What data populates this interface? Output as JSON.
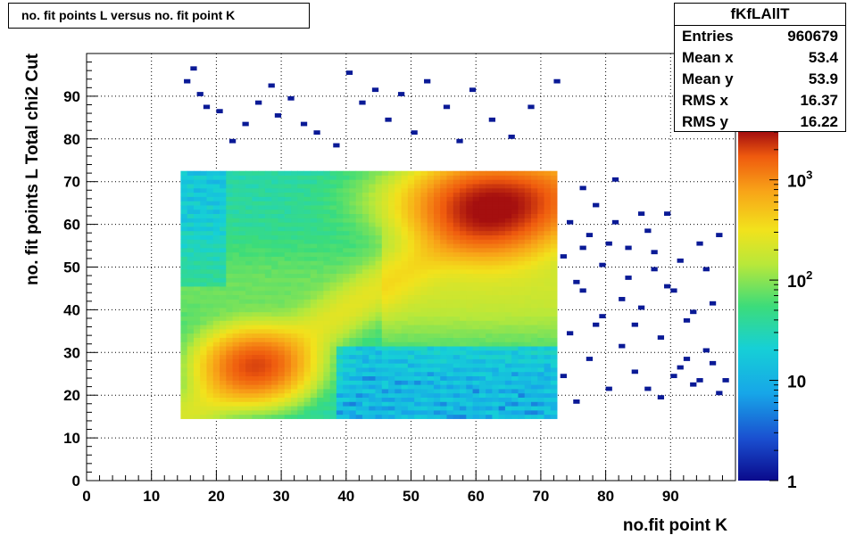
{
  "title": "no. fit points L versus no. fit point K",
  "stats": {
    "name": "fKfLAllT",
    "rows": [
      {
        "label": "Entries",
        "value": "960679"
      },
      {
        "label": "Mean x",
        "value": "53.4"
      },
      {
        "label": "Mean y",
        "value": "53.9"
      },
      {
        "label": "RMS x",
        "value": "16.37"
      },
      {
        "label": "RMS y",
        "value": "16.22"
      }
    ]
  },
  "chart_data": {
    "type": "heatmap",
    "title": "no. fit points L versus no. fit point K",
    "xlabel": "no.fit point K",
    "ylabel": "no. fit points  L   Total chi2 Cut",
    "xlim": [
      0,
      100
    ],
    "ylim": [
      0,
      100
    ],
    "xticks": [
      0,
      10,
      20,
      30,
      40,
      50,
      60,
      70,
      80,
      90
    ],
    "yticks": [
      0,
      10,
      20,
      30,
      40,
      50,
      60,
      70,
      80,
      90
    ],
    "grid": true,
    "z_scale": "log",
    "zlim": [
      1,
      3000
    ],
    "colorbar_labels": [
      {
        "value": 1,
        "base": "1",
        "exp": ""
      },
      {
        "value": 10,
        "base": "10",
        "exp": ""
      },
      {
        "value": 100,
        "base": "10",
        "exp": "2"
      },
      {
        "value": 1000,
        "base": "10",
        "exp": "3"
      }
    ],
    "dense_region": {
      "x": [
        14.5,
        72.5
      ],
      "y": [
        14.5,
        72.5
      ]
    },
    "hotspots": [
      {
        "x": 26,
        "y": 27,
        "value": 1800,
        "label": "diagonal peak"
      },
      {
        "x": 62,
        "y": 63,
        "value": 2500,
        "label": "upper peak"
      }
    ],
    "sparse_points": [
      [
        15,
        93
      ],
      [
        16,
        96
      ],
      [
        17,
        90
      ],
      [
        18,
        87
      ],
      [
        20,
        86
      ],
      [
        22,
        79
      ],
      [
        24,
        83
      ],
      [
        26,
        88
      ],
      [
        28,
        92
      ],
      [
        29,
        85
      ],
      [
        31,
        89
      ],
      [
        33,
        83
      ],
      [
        35,
        81
      ],
      [
        38,
        78
      ],
      [
        40,
        95
      ],
      [
        42,
        88
      ],
      [
        44,
        91
      ],
      [
        46,
        84
      ],
      [
        48,
        90
      ],
      [
        50,
        81
      ],
      [
        52,
        93
      ],
      [
        55,
        87
      ],
      [
        57,
        79
      ],
      [
        59,
        91
      ],
      [
        62,
        84
      ],
      [
        65,
        80
      ],
      [
        68,
        87
      ],
      [
        72,
        93
      ],
      [
        76,
        68
      ],
      [
        78,
        64
      ],
      [
        80,
        55
      ],
      [
        81,
        70
      ],
      [
        83,
        47
      ],
      [
        85,
        40
      ],
      [
        86,
        58
      ],
      [
        87,
        49
      ],
      [
        88,
        33
      ],
      [
        89,
        62
      ],
      [
        90,
        44
      ],
      [
        91,
        26
      ],
      [
        92,
        37
      ],
      [
        93,
        22
      ],
      [
        94,
        55
      ],
      [
        95,
        30
      ],
      [
        96,
        41
      ],
      [
        97,
        20
      ],
      [
        73,
        24
      ],
      [
        74,
        34
      ],
      [
        75,
        18
      ],
      [
        76,
        44
      ],
      [
        77,
        28
      ],
      [
        79,
        38
      ],
      [
        80,
        21
      ],
      [
        82,
        31
      ],
      [
        84,
        25
      ],
      [
        86,
        21
      ],
      [
        88,
        19
      ],
      [
        90,
        24
      ],
      [
        92,
        28
      ],
      [
        94,
        23
      ],
      [
        96,
        27
      ],
      [
        98,
        23
      ],
      [
        73,
        52
      ],
      [
        75,
        46
      ],
      [
        77,
        57
      ],
      [
        79,
        50
      ],
      [
        81,
        60
      ],
      [
        83,
        54
      ],
      [
        85,
        62
      ],
      [
        87,
        53
      ],
      [
        89,
        45
      ],
      [
        91,
        51
      ],
      [
        93,
        39
      ],
      [
        95,
        49
      ],
      [
        97,
        57
      ],
      [
        78,
        36
      ],
      [
        82,
        42
      ],
      [
        84,
        36
      ],
      [
        74,
        60
      ],
      [
        76,
        54
      ]
    ]
  }
}
